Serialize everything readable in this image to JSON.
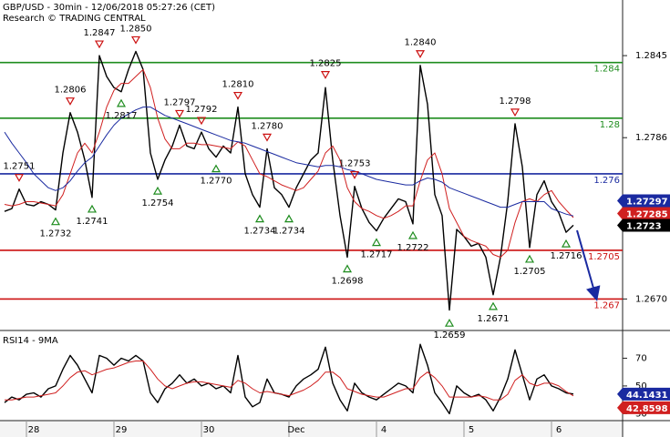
{
  "chart_data": [
    {
      "type": "line",
      "title": "GBP/USD - 30min - 12/06/2018 05:27:26 (CET)",
      "subtitle": "Research © TRADING CENTRAL",
      "ylim": [
        1.2648,
        1.2885
      ],
      "yticks": [
        1.2845,
        1.2786,
        {
          "value": 1.267,
          "label": "1.2670"
        }
      ],
      "levels": [
        {
          "value": 1.284,
          "color": "#1e8c1e"
        },
        {
          "value": 1.28,
          "color": "#1e8c1e"
        },
        {
          "value": 1.276,
          "color": "#1a2aa0"
        },
        {
          "value": 1.2705,
          "color": "#cc1111"
        },
        {
          "value": 1.267,
          "color": "#cc1111"
        }
      ],
      "series": [
        {
          "color": "#000000",
          "values": [
            1.2733,
            1.2735,
            1.2749,
            1.2738,
            1.2737,
            1.274,
            1.2738,
            1.2734,
            1.2775,
            1.2804,
            1.279,
            1.277,
            1.2743,
            1.2845,
            1.283,
            1.2822,
            1.2819,
            1.2835,
            1.2848,
            1.2835,
            1.2775,
            1.2756,
            1.277,
            1.278,
            1.2795,
            1.278,
            1.2778,
            1.279,
            1.2778,
            1.2772,
            1.278,
            1.2775,
            1.2808,
            1.276,
            1.2745,
            1.2736,
            1.2778,
            1.275,
            1.2745,
            1.2736,
            1.275,
            1.276,
            1.277,
            1.2775,
            1.2822,
            1.277,
            1.273,
            1.27,
            1.2751,
            1.2735,
            1.2725,
            1.2719,
            1.2728,
            1.2735,
            1.2742,
            1.274,
            1.2724,
            1.2838,
            1.281,
            1.2745,
            1.273,
            1.2662,
            1.272,
            1.2715,
            1.2708,
            1.271,
            1.27,
            1.2673,
            1.27,
            1.274,
            1.2796,
            1.2765,
            1.2707,
            1.2745,
            1.2755,
            1.274,
            1.2732,
            1.2718,
            1.2723
          ]
        },
        {
          "color": "#d02020",
          "values": [
            1.2738,
            1.2737,
            1.2738,
            1.274,
            1.274,
            1.2739,
            1.2738,
            1.2737,
            1.2745,
            1.276,
            1.2775,
            1.2782,
            1.2775,
            1.279,
            1.2808,
            1.282,
            1.2825,
            1.2825,
            1.283,
            1.2835,
            1.2822,
            1.28,
            1.2785,
            1.2778,
            1.2778,
            1.2782,
            1.2782,
            1.2781,
            1.2781,
            1.278,
            1.2779,
            1.2778,
            1.2783,
            1.278,
            1.277,
            1.276,
            1.2758,
            1.2755,
            1.2752,
            1.275,
            1.2748,
            1.275,
            1.2756,
            1.2762,
            1.2775,
            1.278,
            1.277,
            1.275,
            1.274,
            1.2735,
            1.2733,
            1.273,
            1.2728,
            1.273,
            1.2733,
            1.2737,
            1.2737,
            1.2755,
            1.277,
            1.2775,
            1.276,
            1.2735,
            1.2725,
            1.2715,
            1.2712,
            1.271,
            1.2708,
            1.2702,
            1.27,
            1.2705,
            1.2725,
            1.274,
            1.2742,
            1.274,
            1.2745,
            1.2748,
            1.274,
            1.2734,
            1.27285
          ]
        },
        {
          "color": "#1a2aa0",
          "values": [
            1.279,
            1.2782,
            1.2775,
            1.2768,
            1.276,
            1.2755,
            1.275,
            1.2748,
            1.275,
            1.2755,
            1.2762,
            1.2768,
            1.2772,
            1.278,
            1.2788,
            1.2795,
            1.28,
            1.2803,
            1.2806,
            1.2808,
            1.2808,
            1.2805,
            1.2802,
            1.28,
            1.2798,
            1.2796,
            1.2794,
            1.2792,
            1.279,
            1.2788,
            1.2786,
            1.2784,
            1.2783,
            1.2782,
            1.278,
            1.2778,
            1.2776,
            1.2774,
            1.2772,
            1.277,
            1.2768,
            1.2767,
            1.2766,
            1.2765,
            1.2766,
            1.2766,
            1.2765,
            1.2763,
            1.2762,
            1.276,
            1.2758,
            1.2756,
            1.2755,
            1.2754,
            1.2753,
            1.2752,
            1.2752,
            1.2755,
            1.2757,
            1.2756,
            1.2754,
            1.275,
            1.2748,
            1.2746,
            1.2744,
            1.2742,
            1.274,
            1.2738,
            1.2736,
            1.2736,
            1.2738,
            1.274,
            1.274,
            1.274,
            1.274,
            1.2735,
            1.2733,
            1.2731,
            1.27297
          ]
        }
      ],
      "highs": {
        "color": "#cc1111",
        "values": [
          null,
          null,
          1.2751,
          null,
          null,
          null,
          null,
          null,
          null,
          1.2806,
          null,
          null,
          null,
          1.2847,
          null,
          null,
          null,
          null,
          1.285,
          null,
          null,
          null,
          null,
          null,
          1.2797,
          null,
          null,
          1.2792,
          null,
          null,
          null,
          null,
          1.281,
          null,
          null,
          null,
          1.278,
          null,
          null,
          null,
          null,
          null,
          null,
          null,
          1.2825,
          null,
          null,
          null,
          1.2753,
          null,
          null,
          null,
          null,
          null,
          null,
          null,
          null,
          1.284,
          null,
          null,
          null,
          null,
          null,
          null,
          null,
          null,
          null,
          null,
          null,
          null,
          1.2798,
          null,
          null,
          null,
          null,
          null,
          null,
          null,
          null
        ],
        "value_labels": [
          null,
          null,
          "1.2751",
          null,
          null,
          null,
          null,
          null,
          null,
          "1.2806",
          null,
          null,
          null,
          "1.2847",
          null,
          null,
          null,
          null,
          "1.2850",
          null,
          null,
          null,
          null,
          null,
          "1.2797",
          null,
          null,
          "1.2792",
          null,
          null,
          null,
          null,
          "1.2810",
          null,
          null,
          null,
          "1.2780",
          null,
          null,
          null,
          null,
          null,
          null,
          null,
          "1.2825",
          null,
          null,
          null,
          "1.2753",
          null,
          null,
          null,
          null,
          null,
          null,
          null,
          null,
          "1.2840",
          null,
          null,
          null,
          null,
          null,
          null,
          null,
          null,
          null,
          null,
          null,
          null,
          "1.2798",
          null,
          null,
          null,
          null,
          null,
          null,
          null,
          null
        ]
      },
      "lows": {
        "color": "#1e8c1e",
        "values": [
          null,
          null,
          null,
          null,
          null,
          null,
          null,
          1.2732,
          null,
          null,
          null,
          null,
          1.2741,
          null,
          null,
          null,
          1.2817,
          null,
          null,
          null,
          null,
          1.2754,
          null,
          null,
          null,
          null,
          null,
          null,
          null,
          1.277,
          null,
          null,
          null,
          null,
          null,
          1.2734,
          null,
          null,
          null,
          1.2734,
          null,
          null,
          null,
          null,
          null,
          null,
          null,
          1.2698,
          null,
          null,
          null,
          1.2717,
          null,
          null,
          null,
          null,
          1.2722,
          null,
          null,
          null,
          null,
          1.2659,
          null,
          null,
          null,
          null,
          null,
          1.2671,
          null,
          null,
          null,
          null,
          1.2705,
          null,
          null,
          null,
          null,
          1.2716,
          null
        ],
        "value_labels": [
          null,
          null,
          null,
          null,
          null,
          null,
          null,
          "1.2732",
          null,
          null,
          null,
          null,
          "1.2741",
          null,
          null,
          null,
          "1.2817",
          null,
          null,
          null,
          null,
          "1.2754",
          null,
          null,
          null,
          null,
          null,
          null,
          null,
          "1.2770",
          null,
          null,
          null,
          null,
          null,
          "1.2734",
          null,
          null,
          null,
          "1.2734",
          null,
          null,
          null,
          null,
          null,
          null,
          null,
          "1.2698",
          null,
          null,
          null,
          "1.2717",
          null,
          null,
          null,
          null,
          "1.2722",
          null,
          null,
          null,
          null,
          "1.2659",
          null,
          null,
          null,
          null,
          null,
          "1.2671",
          null,
          null,
          null,
          null,
          "1.2705",
          null,
          null,
          null,
          null,
          "1.2716",
          null
        ]
      }
    },
    {
      "type": "line",
      "title": "RSI14 - 9MA",
      "x": [
        null,
        null,
        null,
        null,
        "28",
        null,
        null,
        null,
        null,
        null,
        null,
        null,
        null,
        null,
        null,
        null,
        "29",
        null,
        null,
        null,
        null,
        null,
        null,
        null,
        null,
        null,
        null,
        null,
        "30",
        null,
        null,
        null,
        null,
        null,
        null,
        null,
        null,
        null,
        null,
        null,
        "Dec",
        null,
        null,
        null,
        null,
        null,
        null,
        null,
        null,
        null,
        null,
        null,
        "4",
        null,
        null,
        null,
        null,
        null,
        null,
        null,
        null,
        null,
        null,
        null,
        "5",
        null,
        null,
        null,
        null,
        null,
        null,
        null,
        null,
        null,
        null,
        null,
        "6",
        null,
        null
      ],
      "ylim": [
        25,
        90
      ],
      "yticks": [
        30,
        50,
        70
      ],
      "series": [
        {
          "color": "#000000",
          "values": [
            38,
            42,
            40,
            44,
            45,
            42,
            48,
            50,
            62,
            72,
            65,
            55,
            45,
            72,
            70,
            65,
            70,
            68,
            72,
            68,
            45,
            38,
            48,
            52,
            58,
            52,
            55,
            50,
            52,
            48,
            50,
            45,
            72,
            42,
            35,
            38,
            55,
            45,
            44,
            42,
            50,
            55,
            58,
            62,
            78,
            52,
            40,
            32,
            52,
            45,
            42,
            40,
            44,
            48,
            52,
            50,
            45,
            80,
            65,
            45,
            38,
            30,
            50,
            45,
            42,
            44,
            40,
            32,
            42,
            55,
            76,
            58,
            40,
            55,
            58,
            50,
            48,
            45,
            44.1431
          ]
        },
        {
          "color": "#d02020",
          "values": [
            40,
            40,
            41,
            42,
            42,
            43,
            44,
            45,
            50,
            56,
            60,
            61,
            58,
            60,
            62,
            63,
            65,
            67,
            68,
            68,
            62,
            55,
            50,
            48,
            50,
            52,
            53,
            53,
            52,
            51,
            50,
            49,
            54,
            52,
            48,
            45,
            46,
            45,
            44,
            43,
            45,
            47,
            50,
            54,
            60,
            60,
            56,
            48,
            46,
            44,
            43,
            42,
            42,
            44,
            46,
            48,
            48,
            56,
            60,
            56,
            50,
            42,
            42,
            42,
            42,
            43,
            42,
            40,
            40,
            44,
            54,
            58,
            52,
            50,
            52,
            52,
            50,
            46,
            42.8598
          ]
        }
      ]
    }
  ]
}
